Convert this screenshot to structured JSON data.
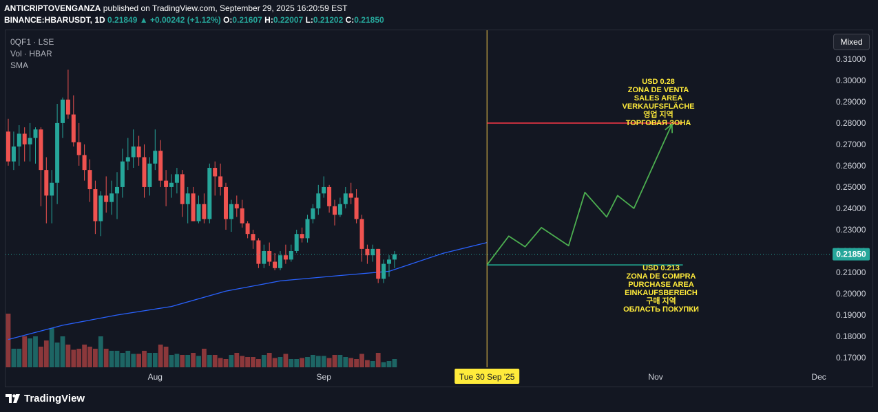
{
  "header": {
    "author": "ANTICRIPTOVENGANZA",
    "published_text": "published on TradingView.com, September 29, 2025 16:20:59 EST",
    "symbol": "BINANCE:HBARUSDT, 1D",
    "last_price": "0.21849",
    "change": "+0.00242 (+1.12%)",
    "open_label": "O:",
    "open": "0.21607",
    "high_label": "H:",
    "high": "0.22007",
    "low_label": "L:",
    "low": "0.21202",
    "close_label": "C:",
    "close": "0.21850"
  },
  "legend": {
    "line1": "0QF1 · LSE",
    "line2": "Vol · HBAR",
    "line3": "SMA"
  },
  "controls": {
    "scale_mode": "Mixed"
  },
  "branding": {
    "logo_text": "TradingView"
  },
  "colors": {
    "background": "#131722",
    "up": "#26a69a",
    "down": "#ef5350",
    "sma": "#2962ff",
    "annotation_text": "#ffeb3b",
    "target_line": "#f23645",
    "entry_line": "#22ab94",
    "path": "#4caf50",
    "crosshair": "#f2c94c"
  },
  "chart_data": {
    "type": "candlestick",
    "y_ticks": [
      0.31,
      0.3,
      0.29,
      0.28,
      0.27,
      0.26,
      0.25,
      0.24,
      0.23,
      0.22,
      0.21,
      0.2,
      0.19,
      0.18,
      0.17
    ],
    "y_tick_labels": [
      "0.31000",
      "0.30000",
      "0.29000",
      "0.28000",
      "0.27000",
      "0.26000",
      "0.25000",
      "0.24000",
      "0.23000",
      "0.22000",
      "0.21000",
      "0.20000",
      "0.19000",
      "0.18000",
      "0.17000"
    ],
    "ylim": [
      0.1655,
      0.3235
    ],
    "x_labels": [
      {
        "label": "Aug",
        "day": 27
      },
      {
        "label": "Sep",
        "day": 58
      },
      {
        "label": "Nov",
        "day": 119
      },
      {
        "label": "Dec",
        "day": 149
      }
    ],
    "crosshair": {
      "day": 88,
      "label": "Tue 30 Sep '25"
    },
    "current_price": {
      "value": 0.2185,
      "label": "0.21850"
    },
    "ohlc": [
      [
        0.276,
        0.282,
        0.26,
        0.262
      ],
      [
        0.262,
        0.276,
        0.258,
        0.269
      ],
      [
        0.269,
        0.279,
        0.26,
        0.275
      ],
      [
        0.275,
        0.278,
        0.262,
        0.27
      ],
      [
        0.27,
        0.28,
        0.262,
        0.273
      ],
      [
        0.273,
        0.278,
        0.261,
        0.277
      ],
      [
        0.277,
        0.278,
        0.241,
        0.258
      ],
      [
        0.258,
        0.264,
        0.233,
        0.246
      ],
      [
        0.246,
        0.258,
        0.233,
        0.252
      ],
      [
        0.252,
        0.289,
        0.242,
        0.28
      ],
      [
        0.28,
        0.292,
        0.273,
        0.291
      ],
      [
        0.291,
        0.305,
        0.282,
        0.284
      ],
      [
        0.284,
        0.293,
        0.269,
        0.271
      ],
      [
        0.271,
        0.28,
        0.26,
        0.265
      ],
      [
        0.265,
        0.27,
        0.253,
        0.258
      ],
      [
        0.258,
        0.263,
        0.243,
        0.249
      ],
      [
        0.249,
        0.253,
        0.228,
        0.234
      ],
      [
        0.234,
        0.248,
        0.227,
        0.246
      ],
      [
        0.246,
        0.255,
        0.238,
        0.243
      ],
      [
        0.243,
        0.253,
        0.237,
        0.247
      ],
      [
        0.247,
        0.257,
        0.235,
        0.25
      ],
      [
        0.25,
        0.268,
        0.245,
        0.262
      ],
      [
        0.262,
        0.273,
        0.258,
        0.264
      ],
      [
        0.264,
        0.277,
        0.259,
        0.269
      ],
      [
        0.269,
        0.274,
        0.26,
        0.264
      ],
      [
        0.264,
        0.27,
        0.245,
        0.25
      ],
      [
        0.25,
        0.264,
        0.246,
        0.261
      ],
      [
        0.261,
        0.277,
        0.258,
        0.267
      ],
      [
        0.267,
        0.272,
        0.25,
        0.253
      ],
      [
        0.253,
        0.258,
        0.241,
        0.25
      ],
      [
        0.25,
        0.256,
        0.245,
        0.252
      ],
      [
        0.252,
        0.259,
        0.247,
        0.256
      ],
      [
        0.256,
        0.258,
        0.236,
        0.242
      ],
      [
        0.242,
        0.25,
        0.233,
        0.247
      ],
      [
        0.247,
        0.25,
        0.234,
        0.234
      ],
      [
        0.234,
        0.246,
        0.233,
        0.242
      ],
      [
        0.242,
        0.247,
        0.233,
        0.235
      ],
      [
        0.235,
        0.261,
        0.233,
        0.259
      ],
      [
        0.259,
        0.262,
        0.246,
        0.255
      ],
      [
        0.255,
        0.261,
        0.246,
        0.25
      ],
      [
        0.25,
        0.252,
        0.23,
        0.235
      ],
      [
        0.235,
        0.244,
        0.229,
        0.242
      ],
      [
        0.242,
        0.246,
        0.236,
        0.24
      ],
      [
        0.24,
        0.244,
        0.231,
        0.233
      ],
      [
        0.233,
        0.234,
        0.226,
        0.228
      ],
      [
        0.228,
        0.23,
        0.221,
        0.225
      ],
      [
        0.225,
        0.226,
        0.212,
        0.214
      ],
      [
        0.214,
        0.223,
        0.212,
        0.22
      ],
      [
        0.22,
        0.224,
        0.213,
        0.215
      ],
      [
        0.215,
        0.219,
        0.211,
        0.212
      ],
      [
        0.212,
        0.22,
        0.211,
        0.218
      ],
      [
        0.218,
        0.223,
        0.214,
        0.216
      ],
      [
        0.216,
        0.223,
        0.215,
        0.22
      ],
      [
        0.22,
        0.23,
        0.219,
        0.228
      ],
      [
        0.228,
        0.231,
        0.224,
        0.226
      ],
      [
        0.226,
        0.237,
        0.224,
        0.235
      ],
      [
        0.235,
        0.242,
        0.233,
        0.24
      ],
      [
        0.24,
        0.251,
        0.237,
        0.247
      ],
      [
        0.247,
        0.255,
        0.245,
        0.25
      ],
      [
        0.25,
        0.251,
        0.238,
        0.241
      ],
      [
        0.241,
        0.244,
        0.232,
        0.237
      ],
      [
        0.237,
        0.245,
        0.236,
        0.242
      ],
      [
        0.242,
        0.25,
        0.24,
        0.247
      ],
      [
        0.247,
        0.252,
        0.242,
        0.245
      ],
      [
        0.245,
        0.249,
        0.233,
        0.235
      ],
      [
        0.235,
        0.237,
        0.215,
        0.221
      ],
      [
        0.221,
        0.223,
        0.214,
        0.218
      ],
      [
        0.218,
        0.223,
        0.215,
        0.221
      ],
      [
        0.221,
        0.221,
        0.205,
        0.207
      ],
      [
        0.207,
        0.216,
        0.205,
        0.214
      ],
      [
        0.214,
        0.218,
        0.208,
        0.216
      ],
      [
        0.216,
        0.22,
        0.212,
        0.2185
      ]
    ],
    "volume_heights_pct": [
      52,
      18,
      18,
      30,
      28,
      30,
      20,
      26,
      38,
      24,
      30,
      22,
      17,
      18,
      22,
      20,
      18,
      30,
      18,
      16,
      16,
      14,
      16,
      13,
      13,
      16,
      14,
      14,
      22,
      20,
      12,
      13,
      12,
      12,
      14,
      11,
      18,
      12,
      12,
      9,
      8,
      12,
      14,
      11,
      10,
      10,
      8,
      12,
      14,
      9,
      10,
      13,
      8,
      8,
      9,
      10,
      12,
      11,
      11,
      9,
      12,
      12,
      10,
      9,
      8,
      13,
      7,
      6,
      14,
      5,
      6,
      8
    ],
    "sma": [
      {
        "day": 0,
        "value": 0.1785
      },
      {
        "day": 10,
        "value": 0.1852
      },
      {
        "day": 20,
        "value": 0.19
      },
      {
        "day": 30,
        "value": 0.194
      },
      {
        "day": 40,
        "value": 0.2012
      },
      {
        "day": 50,
        "value": 0.206
      },
      {
        "day": 60,
        "value": 0.2083
      },
      {
        "day": 70,
        "value": 0.2105
      },
      {
        "day": 80,
        "value": 0.219
      },
      {
        "day": 88,
        "value": 0.224
      }
    ],
    "projection": [
      {
        "day": 88,
        "value": 0.2135
      },
      {
        "day": 92,
        "value": 0.227
      },
      {
        "day": 95,
        "value": 0.222
      },
      {
        "day": 98,
        "value": 0.231
      },
      {
        "day": 103,
        "value": 0.2225
      },
      {
        "day": 106,
        "value": 0.2475
      },
      {
        "day": 110,
        "value": 0.236
      },
      {
        "day": 112,
        "value": 0.246
      },
      {
        "day": 115,
        "value": 0.24
      },
      {
        "day": 122,
        "value": 0.2795
      }
    ],
    "levels": [
      {
        "value": 0.28,
        "start_day": 88,
        "end_day": 124,
        "kind": "target",
        "lines": [
          "USD 0.28",
          "ZONA DE VENTA",
          "SALES AREA",
          "VERKAUFSFLÄCHE",
          "영업 지역",
          "ТОРГОВАЯ ЗОНА"
        ]
      },
      {
        "value": 0.2135,
        "start_day": 88,
        "end_day": 124,
        "kind": "entry",
        "lines": [
          "USD 0.213",
          "ZONA DE COMPRA",
          "PURCHASE AREA",
          "EINKAUFSBEREICH",
          "구매 지역",
          "ОБЛАСТЬ ПОКУПКИ"
        ]
      }
    ]
  }
}
